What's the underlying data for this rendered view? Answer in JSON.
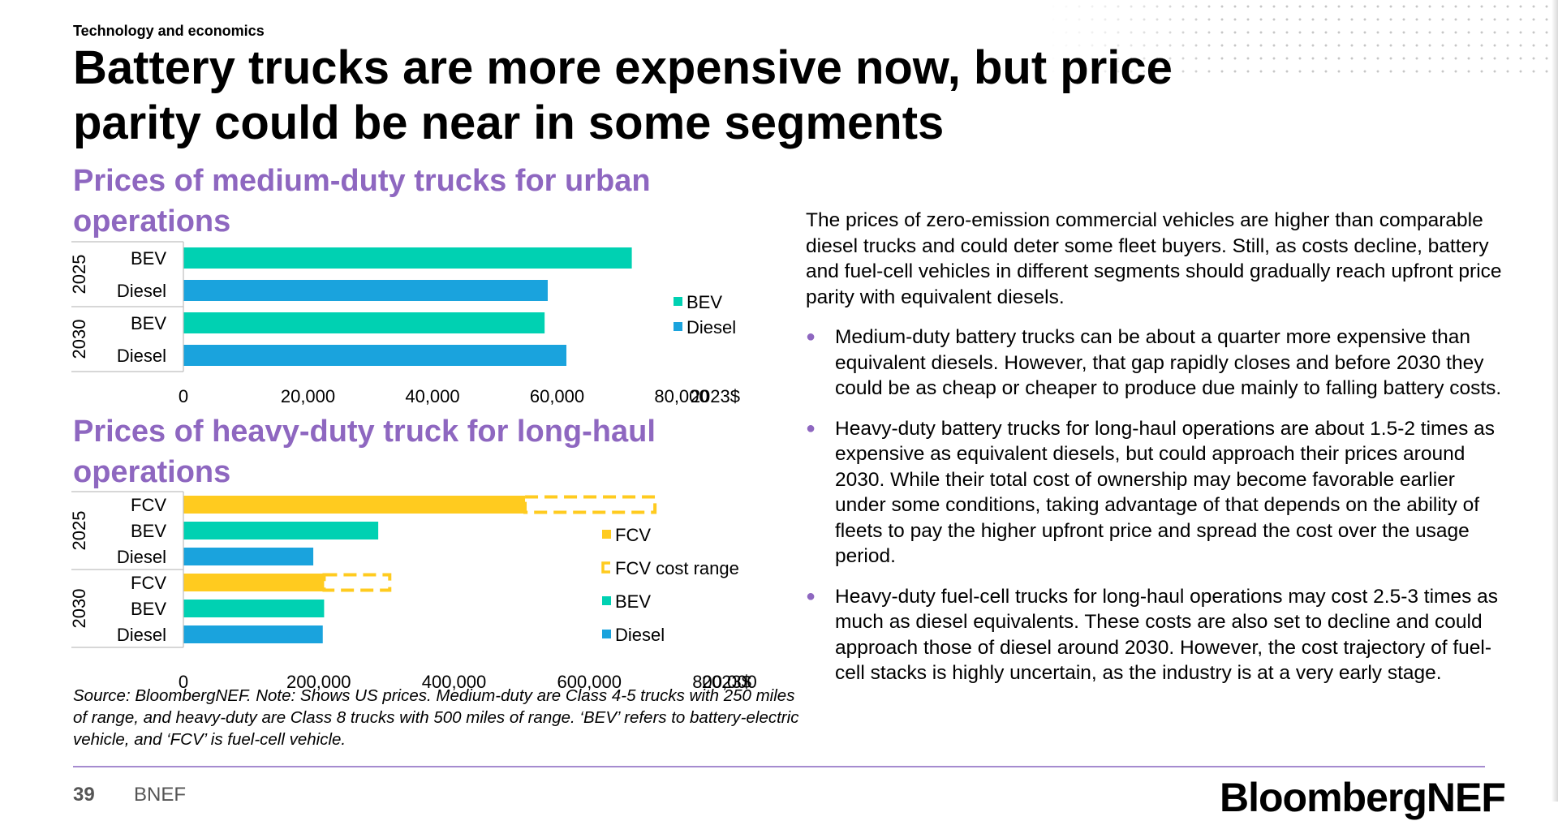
{
  "header": {
    "section": "Technology and economics",
    "title": "Battery trucks are more expensive now, but price parity could be near in some segments"
  },
  "colors": {
    "accent_purple": "#8e67c0",
    "bev": "#00d1b2",
    "diesel": "#1aa3dd",
    "fcv": "#ffcb1f"
  },
  "chart_data": [
    {
      "type": "bar",
      "orientation": "horizontal",
      "title": "Prices of medium-duty trucks for urban operations",
      "groups": [
        "2025",
        "2030"
      ],
      "bars": [
        {
          "group": "2025",
          "label": "BEV",
          "series": "BEV",
          "value": 72000
        },
        {
          "group": "2025",
          "label": "Diesel",
          "series": "Diesel",
          "value": 58500
        },
        {
          "group": "2030",
          "label": "BEV",
          "series": "BEV",
          "value": 58000
        },
        {
          "group": "2030",
          "label": "Diesel",
          "series": "Diesel",
          "value": 61500
        }
      ],
      "xticks": [
        "0",
        "20,000",
        "40,000",
        "60,000",
        "80,000"
      ],
      "xtick_values": [
        0,
        20000,
        40000,
        60000,
        80000
      ],
      "unit": "2023$",
      "xlim": [
        0,
        80000
      ],
      "legend": [
        {
          "name": "BEV",
          "color": "#00d1b2"
        },
        {
          "name": "Diesel",
          "color": "#1aa3dd"
        }
      ],
      "legend_position": "right"
    },
    {
      "type": "bar",
      "orientation": "horizontal",
      "title": "Prices of heavy-duty truck for long-haul operations",
      "groups": [
        "2025",
        "2030"
      ],
      "bars": [
        {
          "group": "2025",
          "label": "FCV",
          "series": "FCV",
          "value": 505000,
          "range_high": 697000
        },
        {
          "group": "2025",
          "label": "BEV",
          "series": "BEV",
          "value": 288000
        },
        {
          "group": "2025",
          "label": "Diesel",
          "series": "Diesel",
          "value": 192000
        },
        {
          "group": "2030",
          "label": "FCV",
          "series": "FCV",
          "value": 208000,
          "range_high": 305000
        },
        {
          "group": "2030",
          "label": "BEV",
          "series": "BEV",
          "value": 208000
        },
        {
          "group": "2030",
          "label": "Diesel",
          "series": "Diesel",
          "value": 206000
        }
      ],
      "xticks": [
        "0",
        "200,000",
        "400,000",
        "600,000",
        "800,000"
      ],
      "xtick_values": [
        0,
        200000,
        400000,
        600000,
        800000
      ],
      "unit": "2023$",
      "xlim": [
        0,
        800000
      ],
      "legend": [
        {
          "name": "FCV",
          "color": "#ffcb1f",
          "style": "solid"
        },
        {
          "name": "FCV cost range",
          "color": "#ffcb1f",
          "style": "dashed"
        },
        {
          "name": "BEV",
          "color": "#00d1b2",
          "style": "solid"
        },
        {
          "name": "Diesel",
          "color": "#1aa3dd",
          "style": "solid"
        }
      ],
      "legend_position": "right"
    }
  ],
  "source_note": "Source: BloombergNEF. Note: Shows US prices. Medium-duty are Class 4-5 trucks with 250 miles of range, and heavy-duty are Class 8 trucks with 500 miles of range. ‘BEV’ refers to battery-electric vehicle, and ‘FCV’ is fuel-cell vehicle.",
  "body": {
    "intro": "The prices of zero-emission commercial vehicles are higher than comparable diesel trucks and could deter some fleet buyers. Still, as costs decline, battery and fuel-cell vehicles in different segments should gradually reach upfront price parity with equivalent diesels.",
    "bullets": [
      "Medium-duty battery trucks can be about a quarter more expensive than equivalent diesels. However, that gap rapidly closes and before 2030 they could be as cheap or cheaper to produce due mainly to falling battery costs.",
      "Heavy-duty battery trucks for long-haul operations are about 1.5-2 times as expensive as equivalent diesels, but could approach their prices around 2030. While their total cost of ownership may become favorable earlier under some conditions, taking advantage of that depends on the ability of fleets to pay the higher upfront price and spread the cost over the usage period.",
      "Heavy-duty fuel-cell trucks for long-haul operations may cost 2.5-3 times as much as diesel equivalents. These costs are also set to decline and could approach those of diesel around 2030. However, the cost trajectory of fuel-cell stacks is highly uncertain, as the industry is at a very early stage."
    ]
  },
  "footer": {
    "page_number": "39",
    "brand": "BNEF",
    "logo": "BloombergNEF"
  }
}
